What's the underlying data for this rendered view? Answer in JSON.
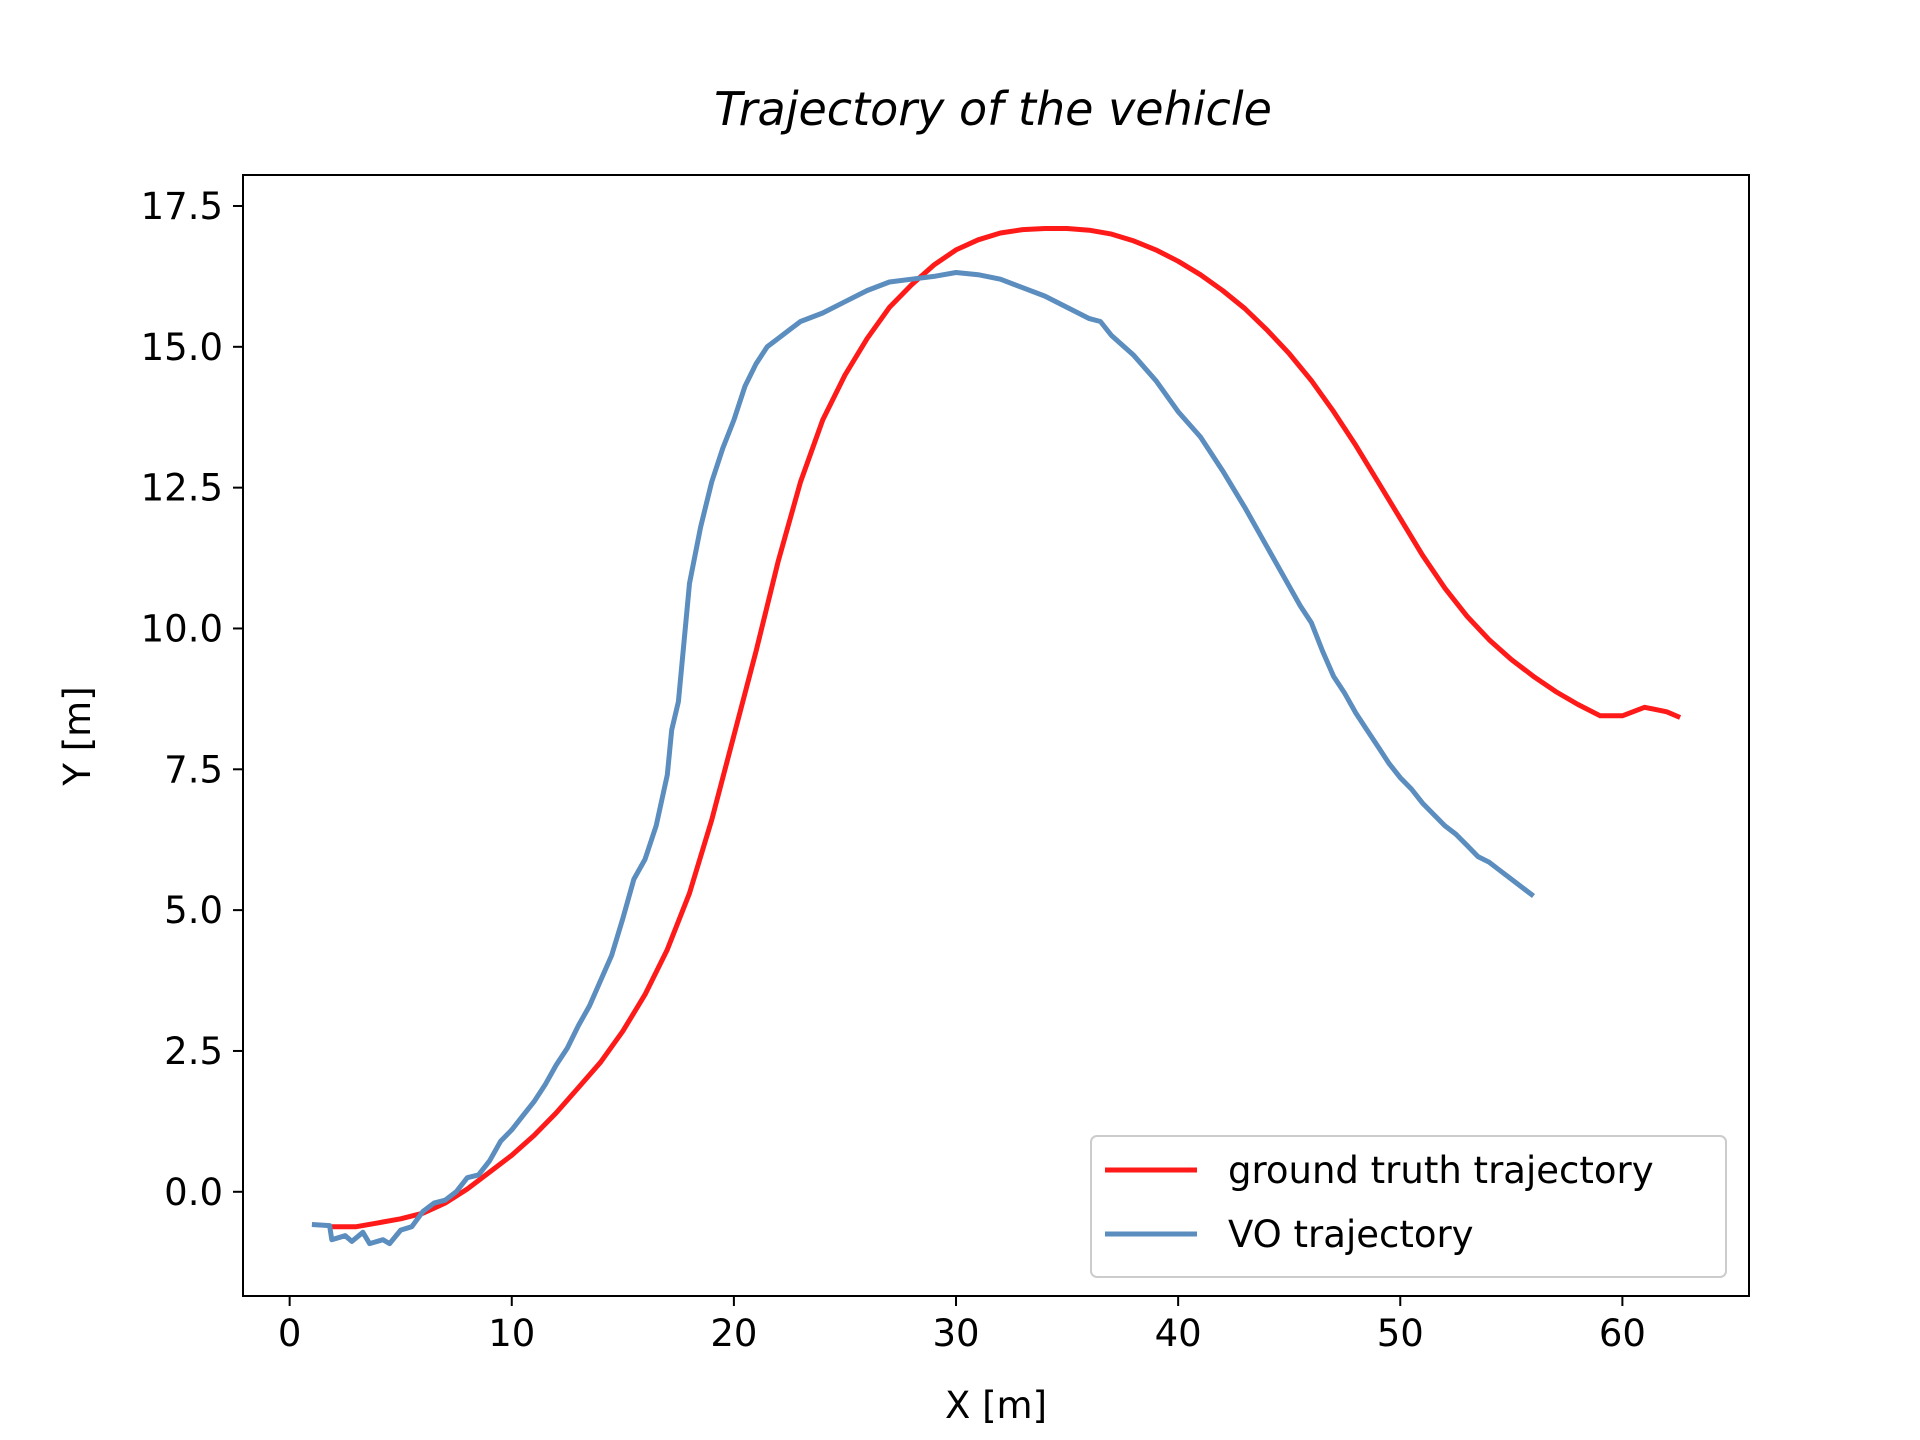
{
  "chart_data": {
    "type": "line",
    "title": "Trajectory of the vehicle",
    "xlabel": "X [m]",
    "ylabel": "Y [m]",
    "xlim": [
      -2.1,
      65.7
    ],
    "ylim": [
      -1.85,
      18.05
    ],
    "xticks": [
      0,
      10,
      20,
      30,
      40,
      50,
      60
    ],
    "xtick_labels": [
      "0",
      "10",
      "20",
      "30",
      "40",
      "50",
      "60"
    ],
    "yticks": [
      0,
      2.5,
      5,
      7.5,
      10,
      12.5,
      15,
      17.5
    ],
    "ytick_labels": [
      "0.0",
      "2.5",
      "5.0",
      "7.5",
      "10.0",
      "12.5",
      "15.0",
      "17.5"
    ],
    "grid": false,
    "legend_position": "lower-right",
    "series": [
      {
        "name": "ground truth trajectory",
        "color": "#ff1a1a",
        "points": [
          [
            1.8,
            -0.62
          ],
          [
            3,
            -0.62
          ],
          [
            4,
            -0.55
          ],
          [
            5,
            -0.48
          ],
          [
            6,
            -0.38
          ],
          [
            7,
            -0.2
          ],
          [
            8,
            0.05
          ],
          [
            9,
            0.35
          ],
          [
            10,
            0.65
          ],
          [
            11,
            1.0
          ],
          [
            12,
            1.4
          ],
          [
            13,
            1.85
          ],
          [
            14,
            2.3
          ],
          [
            15,
            2.85
          ],
          [
            16,
            3.5
          ],
          [
            17,
            4.3
          ],
          [
            18,
            5.3
          ],
          [
            19,
            6.6
          ],
          [
            20,
            8.1
          ],
          [
            21,
            9.6
          ],
          [
            22,
            11.2
          ],
          [
            23,
            12.6
          ],
          [
            24,
            13.7
          ],
          [
            25,
            14.5
          ],
          [
            26,
            15.15
          ],
          [
            27,
            15.7
          ],
          [
            28,
            16.1
          ],
          [
            29,
            16.45
          ],
          [
            30,
            16.72
          ],
          [
            31,
            16.9
          ],
          [
            32,
            17.02
          ],
          [
            33,
            17.08
          ],
          [
            34,
            17.1
          ],
          [
            35,
            17.1
          ],
          [
            36,
            17.07
          ],
          [
            37,
            17.0
          ],
          [
            38,
            16.88
          ],
          [
            39,
            16.72
          ],
          [
            40,
            16.52
          ],
          [
            41,
            16.28
          ],
          [
            42,
            16.0
          ],
          [
            43,
            15.68
          ],
          [
            44,
            15.3
          ],
          [
            45,
            14.88
          ],
          [
            46,
            14.4
          ],
          [
            47,
            13.85
          ],
          [
            48,
            13.25
          ],
          [
            49,
            12.6
          ],
          [
            50,
            11.95
          ],
          [
            51,
            11.3
          ],
          [
            52,
            10.72
          ],
          [
            53,
            10.22
          ],
          [
            54,
            9.8
          ],
          [
            55,
            9.45
          ],
          [
            56,
            9.15
          ],
          [
            57,
            8.88
          ],
          [
            58,
            8.65
          ],
          [
            59,
            8.45
          ],
          [
            60,
            8.45
          ],
          [
            61,
            8.6
          ],
          [
            62,
            8.52
          ],
          [
            62.6,
            8.42
          ]
        ]
      },
      {
        "name": "VO trajectory",
        "color": "#5b8dbf",
        "points": [
          [
            1,
            -0.58
          ],
          [
            1.8,
            -0.6
          ],
          [
            1.9,
            -0.85
          ],
          [
            2.5,
            -0.78
          ],
          [
            2.8,
            -0.88
          ],
          [
            3.3,
            -0.72
          ],
          [
            3.6,
            -0.92
          ],
          [
            4.2,
            -0.85
          ],
          [
            4.5,
            -0.92
          ],
          [
            5.0,
            -0.68
          ],
          [
            5.5,
            -0.62
          ],
          [
            6.0,
            -0.35
          ],
          [
            6.5,
            -0.2
          ],
          [
            7.0,
            -0.15
          ],
          [
            7.5,
            0.0
          ],
          [
            8.0,
            0.25
          ],
          [
            8.5,
            0.3
          ],
          [
            9.0,
            0.55
          ],
          [
            9.5,
            0.9
          ],
          [
            10,
            1.1
          ],
          [
            10.5,
            1.35
          ],
          [
            11,
            1.6
          ],
          [
            11.5,
            1.9
          ],
          [
            12,
            2.25
          ],
          [
            12.5,
            2.55
          ],
          [
            13,
            2.95
          ],
          [
            13.5,
            3.3
          ],
          [
            14,
            3.75
          ],
          [
            14.5,
            4.2
          ],
          [
            15,
            4.85
          ],
          [
            15.5,
            5.55
          ],
          [
            16,
            5.9
          ],
          [
            16.5,
            6.5
          ],
          [
            17,
            7.4
          ],
          [
            17.2,
            8.2
          ],
          [
            17.5,
            8.7
          ],
          [
            18,
            10.8
          ],
          [
            18.5,
            11.8
          ],
          [
            19,
            12.6
          ],
          [
            19.5,
            13.2
          ],
          [
            20,
            13.7
          ],
          [
            20.5,
            14.3
          ],
          [
            21,
            14.7
          ],
          [
            21.5,
            15.0
          ],
          [
            22,
            15.15
          ],
          [
            22.5,
            15.3
          ],
          [
            23,
            15.45
          ],
          [
            24,
            15.6
          ],
          [
            25,
            15.8
          ],
          [
            26,
            16.0
          ],
          [
            27,
            16.15
          ],
          [
            28,
            16.2
          ],
          [
            29,
            16.25
          ],
          [
            30,
            16.32
          ],
          [
            31,
            16.28
          ],
          [
            32,
            16.2
          ],
          [
            33,
            16.05
          ],
          [
            34,
            15.9
          ],
          [
            35,
            15.7
          ],
          [
            36,
            15.5
          ],
          [
            36.5,
            15.45
          ],
          [
            37,
            15.2
          ],
          [
            38,
            14.85
          ],
          [
            39,
            14.4
          ],
          [
            40,
            13.85
          ],
          [
            41,
            13.4
          ],
          [
            42,
            12.8
          ],
          [
            43,
            12.15
          ],
          [
            44,
            11.45
          ],
          [
            45,
            10.75
          ],
          [
            45.5,
            10.4
          ],
          [
            46,
            10.1
          ],
          [
            46.5,
            9.6
          ],
          [
            47,
            9.15
          ],
          [
            47.5,
            8.85
          ],
          [
            48,
            8.5
          ],
          [
            48.5,
            8.2
          ],
          [
            49,
            7.9
          ],
          [
            49.5,
            7.6
          ],
          [
            50,
            7.35
          ],
          [
            50.5,
            7.15
          ],
          [
            51,
            6.9
          ],
          [
            51.5,
            6.7
          ],
          [
            52,
            6.5
          ],
          [
            52.5,
            6.35
          ],
          [
            53,
            6.15
          ],
          [
            53.5,
            5.95
          ],
          [
            54,
            5.85
          ],
          [
            54.5,
            5.7
          ],
          [
            55,
            5.55
          ],
          [
            55.5,
            5.4
          ],
          [
            56,
            5.25
          ]
        ]
      }
    ]
  }
}
